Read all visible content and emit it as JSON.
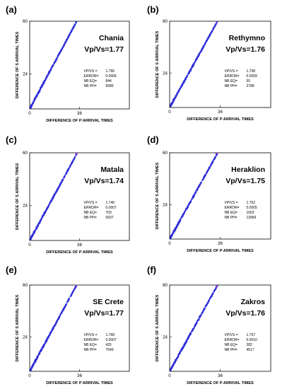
{
  "chart_data": [
    {
      "type": "scatter",
      "panel_label": "(a)",
      "station": "Chania",
      "ratio_label": "Vp/Vs=1.77",
      "xlabel": "DIFFERENCE OF P ARRIVAL TIMES",
      "ylabel": "DIFFERENCE OF S ARRIVAL TIMES",
      "x_ticks": [
        "0",
        "36"
      ],
      "y_ticks": [
        "24",
        "60"
      ],
      "xlim": [
        0,
        72
      ],
      "ylim": [
        0,
        60
      ],
      "slope": 1.766,
      "x_range": [
        0.5,
        35
      ],
      "stats": [
        {
          "key": "VP/VS =",
          "value": "1.766"
        },
        {
          "key": "ERROR=",
          "value": "0.0006"
        },
        {
          "key": "NB EQ=",
          "value": "844"
        },
        {
          "key": "NB PH=",
          "value": "5686"
        }
      ],
      "series_color": "#2f2fd8"
    },
    {
      "type": "scatter",
      "panel_label": "(b)",
      "station": "Rethymno",
      "ratio_label": "Vp/Vs=1.76",
      "xlabel": "DIFFERENCE OF P ARRIVAL TIMES",
      "ylabel": "DIFFERENCE OF S ARRIVAL TIMES",
      "x_ticks": [
        "0",
        "36"
      ],
      "y_ticks": [
        "24",
        "60"
      ],
      "xlim": [
        0,
        72
      ],
      "ylim": [
        0,
        60
      ],
      "slope": 1.758,
      "x_range": [
        0.5,
        34
      ],
      "stats": [
        {
          "key": "VP/VS =",
          "value": "1.758"
        },
        {
          "key": "ERROR=",
          "value": "0.0009"
        },
        {
          "key": "NB EQ=",
          "value": "55"
        },
        {
          "key": "NB PH=",
          "value": "2788"
        }
      ],
      "series_color": "#2f2fd8"
    },
    {
      "type": "scatter",
      "panel_label": "(c)",
      "station": "Matala",
      "ratio_label": "Vp/Vs=1.74",
      "xlabel": "DIFFERENCE OF P ARRIVAL TIMES",
      "ylabel": "DIFFERENCE OF S ARRIVAL TIMES",
      "x_ticks": [
        "0",
        "36"
      ],
      "y_ticks": [
        "24",
        "60"
      ],
      "xlim": [
        0,
        72
      ],
      "ylim": [
        0,
        60
      ],
      "slope": 1.74,
      "x_range": [
        0.5,
        34
      ],
      "stats": [
        {
          "key": "VP/VS =",
          "value": "1.740"
        },
        {
          "key": "ERROR=",
          "value": "0.0007"
        },
        {
          "key": "NB EQ=",
          "value": "703"
        },
        {
          "key": "NB PH=",
          "value": "6937"
        }
      ],
      "series_color": "#2f2fd8"
    },
    {
      "type": "scatter",
      "panel_label": "(d)",
      "station": "Heraklion",
      "ratio_label": "Vp/Vs=1.75",
      "xlabel": "DIFFERENCE OF P ARRIVAL TIMES",
      "ylabel": "DIFFERENCE OF S ARRIVAL TIMES",
      "x_ticks": [
        "0",
        "36"
      ],
      "y_ticks": [
        "24",
        "60"
      ],
      "xlim": [
        0,
        72
      ],
      "ylim": [
        0,
        60
      ],
      "slope": 1.752,
      "x_range": [
        0.5,
        34
      ],
      "stats": [
        {
          "key": "VP/VS =",
          "value": "1.752"
        },
        {
          "key": "ERROR=",
          "value": "0.0005"
        },
        {
          "key": "NB EQ=",
          "value": "1002"
        },
        {
          "key": "NB PH=",
          "value": "13966"
        }
      ],
      "series_color": "#2f2fd8"
    },
    {
      "type": "scatter",
      "panel_label": "(e)",
      "station": "SE Crete",
      "ratio_label": "Vp/Vs=1.77",
      "xlabel": "DIFFERENCE OF P ARRIVAL TIMES",
      "ylabel": "DIFFERENCE OF S ARRIVAL TIMES",
      "x_ticks": [
        "0",
        "36"
      ],
      "y_ticks": [
        "24",
        "60"
      ],
      "xlim": [
        0,
        72
      ],
      "ylim": [
        0,
        60
      ],
      "slope": 1.768,
      "x_range": [
        0.5,
        34
      ],
      "stats": [
        {
          "key": "VP/VS =",
          "value": "1.768"
        },
        {
          "key": "ERROR=",
          "value": "0.0007"
        },
        {
          "key": "NB EQ=",
          "value": "425"
        },
        {
          "key": "NB PH=",
          "value": "7646"
        }
      ],
      "series_color": "#2f2fd8"
    },
    {
      "type": "scatter",
      "panel_label": "(f)",
      "station": "Zakros",
      "ratio_label": "Vp/Vs=1.76",
      "xlabel": "DIFFERENCE OF P ARRIVAL TIMES",
      "ylabel": "DIFFERENCE OF S ARRIVAL TIMES",
      "x_ticks": [
        "0",
        "36"
      ],
      "y_ticks": [
        "24",
        "60"
      ],
      "xlim": [
        0,
        72
      ],
      "ylim": [
        0,
        60
      ],
      "slope": 1.757,
      "x_range": [
        0.5,
        34
      ],
      "stats": [
        {
          "key": "VP/VS =",
          "value": "1.757"
        },
        {
          "key": "ERROR=",
          "value": "0.0010"
        },
        {
          "key": "NB EQ=",
          "value": "282"
        },
        {
          "key": "NB PH=",
          "value": "4517"
        }
      ],
      "series_color": "#2f2fd8"
    }
  ]
}
